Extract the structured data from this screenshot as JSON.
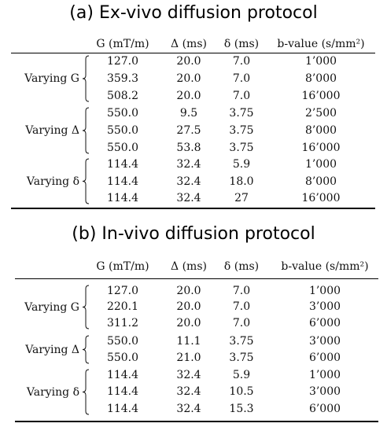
{
  "tables": [
    {
      "title": "(a) Ex-vivo diffusion protocol",
      "headers": [
        "G (mT/m)",
        "Δ (ms)",
        "δ (ms)",
        "b-value (s/mm²)"
      ],
      "groups": [
        {
          "label": "Varying G",
          "rows": [
            [
              "127.0",
              "20.0",
              "7.0",
              "1’000"
            ],
            [
              "359.3",
              "20.0",
              "7.0",
              "8’000"
            ],
            [
              "508.2",
              "20.0",
              "7.0",
              "16’000"
            ]
          ]
        },
        {
          "label": "Varying Δ",
          "rows": [
            [
              "550.0",
              "9.5",
              "3.75",
              "2’500"
            ],
            [
              "550.0",
              "27.5",
              "3.75",
              "8’000"
            ],
            [
              "550.0",
              "53.8",
              "3.75",
              "16’000"
            ]
          ]
        },
        {
          "label": "Varying δ",
          "rows": [
            [
              "114.4",
              "32.4",
              "5.9",
              "1’000"
            ],
            [
              "114.4",
              "32.4",
              "18.0",
              "8’000"
            ],
            [
              "114.4",
              "32.4",
              "27",
              "16’000"
            ]
          ]
        }
      ]
    },
    {
      "title": "(b) In-vivo diffusion protocol",
      "headers": [
        "G (mT/m)",
        "Δ (ms)",
        "δ (ms)",
        "b-value (s/mm²)"
      ],
      "groups": [
        {
          "label": "Varying G",
          "rows": [
            [
              "127.0",
              "20.0",
              "7.0",
              "1’000"
            ],
            [
              "220.1",
              "20.0",
              "7.0",
              "3’000"
            ],
            [
              "311.2",
              "20.0",
              "7.0",
              "6’000"
            ]
          ]
        },
        {
          "label": "Varying Δ",
          "rows": [
            [
              "550.0",
              "11.1",
              "3.75",
              "3’000"
            ],
            [
              "550.0",
              "21.0",
              "3.75",
              "6’000"
            ]
          ]
        },
        {
          "label": "Varying δ",
          "rows": [
            [
              "114.4",
              "32.4",
              "5.9",
              "1’000"
            ],
            [
              "114.4",
              "32.4",
              "10.5",
              "3’000"
            ],
            [
              "114.4",
              "32.4",
              "15.3",
              "6’000"
            ]
          ]
        }
      ]
    }
  ]
}
